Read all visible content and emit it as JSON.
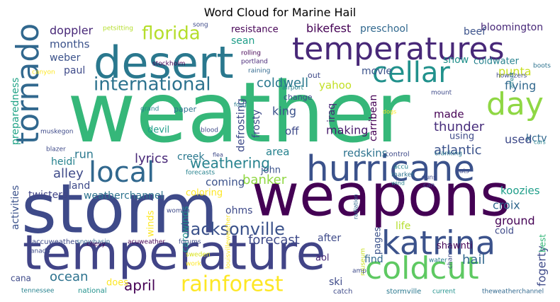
{
  "chart_data": {
    "type": "wordcloud",
    "title": "Word Cloud for Marine Hail",
    "words": [
      {
        "text": "weather",
        "color": "#35b779"
      },
      {
        "text": "storm",
        "color": "#3e4a89"
      },
      {
        "text": "weapons",
        "color": "#440154"
      },
      {
        "text": "temperature",
        "color": "#414487"
      },
      {
        "text": "desert",
        "color": "#2a788e"
      },
      {
        "text": "temperatures",
        "color": "#482878"
      },
      {
        "text": "hurricane",
        "color": "#3b528b"
      },
      {
        "text": "tornado",
        "color": "#31688e"
      },
      {
        "text": "katrina",
        "color": "#3b528b"
      },
      {
        "text": "coldcut",
        "color": "#5ec962"
      },
      {
        "text": "cellar",
        "color": "#21918c"
      },
      {
        "text": "local",
        "color": "#31688e"
      },
      {
        "text": "day",
        "color": "#8fd744"
      },
      {
        "text": "rainforest",
        "color": "#fde725"
      },
      {
        "text": "international",
        "color": "#2c728e"
      },
      {
        "text": "florida",
        "color": "#b5de2b"
      },
      {
        "text": "jacksonville",
        "color": "#3b528b"
      },
      {
        "text": "weathering",
        "color": "#26828e"
      },
      {
        "text": "coldwell",
        "color": "#2a788e"
      },
      {
        "text": "thunder",
        "color": "#472d7b"
      },
      {
        "text": "atlantic",
        "color": "#3b528b"
      },
      {
        "text": "april",
        "color": "#440154"
      },
      {
        "text": "ocean",
        "color": "#2c728e"
      },
      {
        "text": "forecast",
        "color": "#3e4a89"
      },
      {
        "text": "hail",
        "color": "#31688e"
      },
      {
        "text": "lyrics",
        "color": "#482878"
      },
      {
        "text": "alley",
        "color": "#3e4a89"
      },
      {
        "text": "banker",
        "color": "#90d743"
      },
      {
        "text": "croix",
        "color": "#31688e"
      },
      {
        "text": "ground",
        "color": "#440154"
      },
      {
        "text": "fogerty",
        "color": "#3e4a89"
      },
      {
        "text": "flying",
        "color": "#31688e"
      },
      {
        "text": "punta",
        "color": "#c8e020"
      },
      {
        "text": "used",
        "color": "#3e4a89"
      },
      {
        "text": "king",
        "color": "#3b528b"
      },
      {
        "text": "making",
        "color": "#481a6c"
      },
      {
        "text": "doppler",
        "color": "#482878"
      },
      {
        "text": "months",
        "color": "#3b528b"
      },
      {
        "text": "weber",
        "color": "#3b528b"
      },
      {
        "text": "paul",
        "color": "#3e4a89"
      },
      {
        "text": "bikefest",
        "color": "#440154"
      },
      {
        "text": "preschool",
        "color": "#31688e"
      },
      {
        "text": "bloomington",
        "color": "#482878"
      },
      {
        "text": "beef",
        "color": "#3b528b"
      },
      {
        "text": "resistance",
        "color": "#440154"
      },
      {
        "text": "sean",
        "color": "#1f9e89"
      },
      {
        "text": "yahoo",
        "color": "#c2df23"
      },
      {
        "text": "snow",
        "color": "#21918c"
      },
      {
        "text": "coldwater",
        "color": "#26828e"
      },
      {
        "text": "made",
        "color": "#440154"
      },
      {
        "text": "kctv",
        "color": "#31688e"
      },
      {
        "text": "run",
        "color": "#2a788e"
      },
      {
        "text": "creek",
        "color": "#2a788e"
      },
      {
        "text": "area",
        "color": "#26828e"
      },
      {
        "text": "off",
        "color": "#3e4a89"
      },
      {
        "text": "heidi",
        "color": "#26828e"
      },
      {
        "text": "land",
        "color": "#3e4a89"
      },
      {
        "text": "twisters",
        "color": "#414487"
      },
      {
        "text": "weatherchannel",
        "color": "#2c728e"
      },
      {
        "text": "coming",
        "color": "#3b528b"
      },
      {
        "text": "coloring",
        "color": "#fde725"
      },
      {
        "text": "redskins",
        "color": "#2c728e"
      },
      {
        "text": "john",
        "color": "#3b528b"
      },
      {
        "text": "koozies",
        "color": "#1f9e89"
      },
      {
        "text": "cold",
        "color": "#3e4a89"
      },
      {
        "text": "life",
        "color": "#b5de2b"
      },
      {
        "text": "ohms",
        "color": "#3e4a89"
      },
      {
        "text": "find",
        "color": "#31688e"
      },
      {
        "text": "after",
        "color": "#3e4a89"
      },
      {
        "text": "ski",
        "color": "#3e4a89"
      },
      {
        "text": "does",
        "color": "#fde725"
      },
      {
        "text": "cana",
        "color": "#3e4a89"
      },
      {
        "text": "defrosting",
        "color": "#3e4a89"
      },
      {
        "text": "frosty",
        "color": "#3e4a89"
      },
      {
        "text": "iraq",
        "color": "#482878"
      },
      {
        "text": "carribean",
        "color": "#440154"
      },
      {
        "text": "activities",
        "color": "#3b528b"
      },
      {
        "text": "preparedness",
        "color": "#20a386"
      },
      {
        "text": "devil",
        "color": "#1f9e89"
      },
      {
        "text": "movie",
        "color": "#3b528b"
      },
      {
        "text": "using",
        "color": "#3e4a89"
      },
      {
        "text": "winds",
        "color": "#fde725"
      },
      {
        "text": "carowinds",
        "color": "#21918c"
      },
      {
        "text": "pages",
        "color": "#3b528b"
      },
      {
        "text": "shawnti",
        "color": "#440154"
      },
      {
        "text": "best",
        "color": "#35b779"
      },
      {
        "text": "aol",
        "color": "#482878"
      },
      {
        "text": "national",
        "color": "#21918c"
      },
      {
        "text": "tennessee",
        "color": "#26828e"
      },
      {
        "text": "catch",
        "color": "#3e4a89"
      },
      {
        "text": "stormville",
        "color": "#2a788e"
      },
      {
        "text": "current",
        "color": "#21918c"
      },
      {
        "text": "theweatherchannel",
        "color": "#31688e"
      },
      {
        "text": "accuweather",
        "color": "#3e4a89"
      },
      {
        "text": "snowbasin",
        "color": "#31688e"
      },
      {
        "text": "acuweather",
        "color": "#440154"
      },
      {
        "text": "forums",
        "color": "#3e4a89"
      },
      {
        "text": "sweden",
        "color": "#d8e219"
      },
      {
        "text": "work",
        "color": "#fde725"
      },
      {
        "text": "louisvilleweather",
        "color": "#fde725"
      },
      {
        "text": "museum",
        "color": "#c8e020"
      },
      {
        "text": "water",
        "color": "#2a788e"
      },
      {
        "text": "channel",
        "color": "#3e4a89"
      },
      {
        "text": "amp",
        "color": "#3e4a89"
      },
      {
        "text": "radiation",
        "color": "#31688e"
      },
      {
        "text": "chevy",
        "color": "#440154"
      },
      {
        "text": "canada",
        "color": "#3e4a89"
      },
      {
        "text": "women",
        "color": "#3e4a89"
      },
      {
        "text": "petsitting",
        "color": "#b5de2b"
      },
      {
        "text": "song",
        "color": "#3e4a89"
      },
      {
        "text": "rolling",
        "color": "#440154"
      },
      {
        "text": "portland",
        "color": "#482878"
      },
      {
        "text": "raining",
        "color": "#31688e"
      },
      {
        "text": "stockholm",
        "color": "#440154"
      },
      {
        "text": "canyon",
        "color": "#fde725"
      },
      {
        "text": "change",
        "color": "#3e4a89"
      },
      {
        "text": "out",
        "color": "#3e4a89"
      },
      {
        "text": "airport",
        "color": "#26828e"
      },
      {
        "text": "fogg",
        "color": "#2a788e"
      },
      {
        "text": "paper",
        "color": "#2c728e"
      },
      {
        "text": "grand",
        "color": "#26828e"
      },
      {
        "text": "muskegon",
        "color": "#3e4a89"
      },
      {
        "text": "blood",
        "color": "#3e4a89"
      },
      {
        "text": "blazer",
        "color": "#3e4a89"
      },
      {
        "text": "flea",
        "color": "#3e4a89"
      },
      {
        "text": "forecasts",
        "color": "#26828e"
      },
      {
        "text": "control",
        "color": "#3e4a89"
      },
      {
        "text": "cranking",
        "color": "#2a788e"
      },
      {
        "text": "accu",
        "color": "#26828e"
      },
      {
        "text": "market",
        "color": "#2c728e"
      },
      {
        "text": "wind",
        "color": "#26828e"
      },
      {
        "text": "suns",
        "color": "#3e4a89"
      },
      {
        "text": "can",
        "color": "#3e4a89"
      },
      {
        "text": "cats",
        "color": "#3e4a89"
      },
      {
        "text": "cars",
        "color": "#26828e"
      },
      {
        "text": "mount",
        "color": "#3e4a89"
      },
      {
        "text": "dogs",
        "color": "#fde725"
      },
      {
        "text": "howitzers",
        "color": "#3e4a89"
      },
      {
        "text": "boots",
        "color": "#2c728e"
      },
      {
        "text": "affect",
        "color": "#26828e"
      }
    ]
  }
}
